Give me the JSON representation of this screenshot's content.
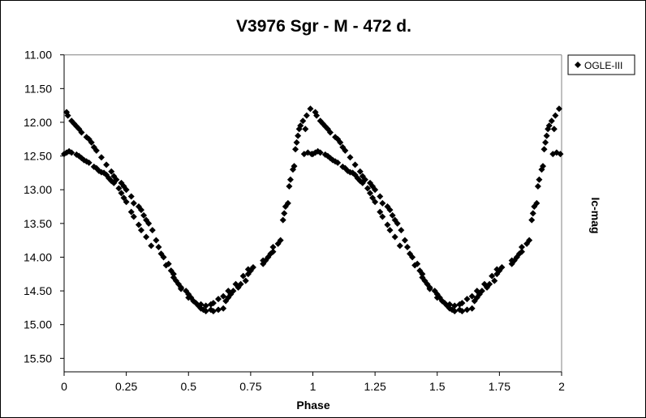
{
  "chart_data": {
    "type": "scatter",
    "title": "V3976 Sgr - M - 472 d.",
    "xlabel": "Phase",
    "ylabel": "Ic-mag",
    "xlim": [
      0,
      2
    ],
    "ylim": [
      11.0,
      15.7
    ],
    "y_inverted": true,
    "x_ticks": [
      "0",
      "0.25",
      "0.5",
      "0.75",
      "1",
      "1.25",
      "1.5",
      "1.75",
      "2"
    ],
    "x_tick_values": [
      0,
      0.25,
      0.5,
      0.75,
      1,
      1.25,
      1.5,
      1.75,
      2
    ],
    "y_ticks": [
      "11.00",
      "11.50",
      "12.00",
      "12.50",
      "13.00",
      "13.50",
      "14.00",
      "14.50",
      "15.00",
      "15.50"
    ],
    "y_tick_values": [
      11.0,
      11.5,
      12.0,
      12.5,
      13.0,
      13.5,
      14.0,
      14.5,
      15.0,
      15.5
    ],
    "grid": false,
    "legend": {
      "position": "top-right",
      "entries": [
        "OGLE-III"
      ]
    },
    "marker_color": "#000000",
    "repeat_phase_cycle": true,
    "series": [
      {
        "name": "OGLE-III",
        "points": [
          [
            0.01,
            11.85
          ],
          [
            0.015,
            11.9
          ],
          [
            0.03,
            11.98
          ],
          [
            0.04,
            12.02
          ],
          [
            0.05,
            12.06
          ],
          [
            0.06,
            12.1
          ],
          [
            0.07,
            12.15
          ],
          [
            0.09,
            12.22
          ],
          [
            0.1,
            12.25
          ],
          [
            0.11,
            12.3
          ],
          [
            0.12,
            12.37
          ],
          [
            0.13,
            12.42
          ],
          [
            0.15,
            12.52
          ],
          [
            0.17,
            12.63
          ],
          [
            0.19,
            12.73
          ],
          [
            0.2,
            12.8
          ],
          [
            0.21,
            12.85
          ],
          [
            0.23,
            12.9
          ],
          [
            0.24,
            12.95
          ],
          [
            0.25,
            13.0
          ],
          [
            0.27,
            13.1
          ],
          [
            0.28,
            13.2
          ],
          [
            0.3,
            13.25
          ],
          [
            0.31,
            13.3
          ],
          [
            0.32,
            13.38
          ],
          [
            0.33,
            13.45
          ],
          [
            0.34,
            13.5
          ],
          [
            0.355,
            13.6
          ],
          [
            0.37,
            13.75
          ],
          [
            0.38,
            13.85
          ],
          [
            0.39,
            13.95
          ],
          [
            0.4,
            14.0
          ],
          [
            0.42,
            14.1
          ],
          [
            0.43,
            14.2
          ],
          [
            0.44,
            14.25
          ],
          [
            0.45,
            14.35
          ],
          [
            0.46,
            14.4
          ],
          [
            0.47,
            14.45
          ],
          [
            0.49,
            14.5
          ],
          [
            0.5,
            14.55
          ],
          [
            0.51,
            14.6
          ],
          [
            0.52,
            14.65
          ],
          [
            0.54,
            14.72
          ],
          [
            0.55,
            14.76
          ],
          [
            0.56,
            14.78
          ],
          [
            0.57,
            14.8
          ],
          [
            0.59,
            14.78
          ],
          [
            0.6,
            14.8
          ],
          [
            0.62,
            14.78
          ],
          [
            0.64,
            14.76
          ],
          [
            0.65,
            14.65
          ],
          [
            0.66,
            14.6
          ],
          [
            0.67,
            14.55
          ],
          [
            0.68,
            14.5
          ],
          [
            0.7,
            14.45
          ],
          [
            0.71,
            14.4
          ],
          [
            0.73,
            14.35
          ],
          [
            0.74,
            14.25
          ],
          [
            0.75,
            14.2
          ],
          [
            0.8,
            14.1
          ],
          [
            0.81,
            14.05
          ],
          [
            0.82,
            14.0
          ],
          [
            0.83,
            13.95
          ],
          [
            0.84,
            13.85
          ],
          [
            0.86,
            13.8
          ],
          [
            0.87,
            13.75
          ],
          [
            0.88,
            13.45
          ],
          [
            0.885,
            13.35
          ],
          [
            0.89,
            13.25
          ],
          [
            0.9,
            13.2
          ],
          [
            0.905,
            12.95
          ],
          [
            0.91,
            12.85
          ],
          [
            0.92,
            12.7
          ],
          [
            0.925,
            12.65
          ],
          [
            0.93,
            12.4
          ],
          [
            0.935,
            12.3
          ],
          [
            0.94,
            12.2
          ],
          [
            0.945,
            12.1
          ],
          [
            0.95,
            12.05
          ],
          [
            0.96,
            11.98
          ],
          [
            0.97,
            12.1
          ],
          [
            0.975,
            11.9
          ],
          [
            0.99,
            11.8
          ],
          [
            0.0,
            12.47
          ],
          [
            0.01,
            12.45
          ],
          [
            0.02,
            12.43
          ],
          [
            0.03,
            12.45
          ],
          [
            0.05,
            12.48
          ],
          [
            0.06,
            12.5
          ],
          [
            0.07,
            12.53
          ],
          [
            0.08,
            12.56
          ],
          [
            0.09,
            12.58
          ],
          [
            0.1,
            12.6
          ],
          [
            0.12,
            12.66
          ],
          [
            0.13,
            12.68
          ],
          [
            0.14,
            12.72
          ],
          [
            0.15,
            12.74
          ],
          [
            0.16,
            12.75
          ],
          [
            0.17,
            12.78
          ],
          [
            0.18,
            12.83
          ],
          [
            0.19,
            12.87
          ],
          [
            0.2,
            12.9
          ],
          [
            0.22,
            12.98
          ],
          [
            0.23,
            13.05
          ],
          [
            0.24,
            13.12
          ],
          [
            0.25,
            13.18
          ],
          [
            0.27,
            13.33
          ],
          [
            0.28,
            13.4
          ],
          [
            0.3,
            13.52
          ],
          [
            0.31,
            13.6
          ],
          [
            0.33,
            13.7
          ],
          [
            0.35,
            13.83
          ],
          [
            0.41,
            14.12
          ],
          [
            0.44,
            14.3
          ],
          [
            0.47,
            14.47
          ],
          [
            0.5,
            14.6
          ],
          [
            0.53,
            14.68
          ],
          [
            0.55,
            14.7
          ],
          [
            0.57,
            14.72
          ],
          [
            0.59,
            14.7
          ],
          [
            0.6,
            14.68
          ],
          [
            0.62,
            14.62
          ],
          [
            0.64,
            14.58
          ],
          [
            0.66,
            14.5
          ],
          [
            0.69,
            14.4
          ],
          [
            0.72,
            14.28
          ],
          [
            0.74,
            14.18
          ],
          [
            0.76,
            14.15
          ],
          [
            0.8,
            14.05
          ],
          [
            0.84,
            13.92
          ],
          [
            0.965,
            12.47
          ],
          [
            0.98,
            12.45
          ],
          [
            0.995,
            12.47
          ]
        ]
      }
    ]
  }
}
